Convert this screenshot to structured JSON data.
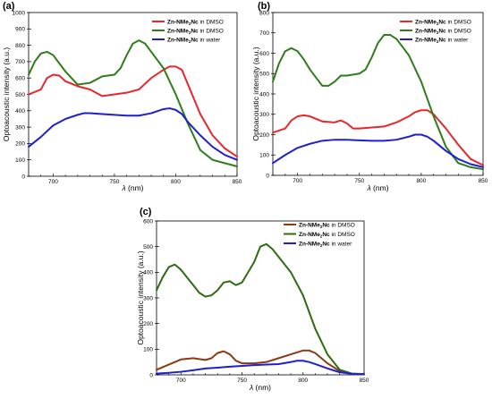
{
  "chart_data": [
    {
      "type": "line",
      "panel_label": "(a)",
      "ylabel": "Optoacoustic intensity (a.u.)",
      "xlabel_symbol": "λ",
      "xlabel_unit": "(nm)",
      "xlim": [
        680,
        850
      ],
      "ylim": [
        0,
        1000
      ],
      "x_ticks": [
        700,
        750,
        800,
        850
      ],
      "y_ticks": [
        0,
        100,
        200,
        300,
        400,
        500,
        600,
        700,
        800,
        900,
        1000
      ],
      "legend_position": "top-right",
      "series": [
        {
          "name": "Zn-NMe2Nc in DMSO",
          "name_main": "Zn-NMe",
          "name_sub": "2",
          "name_rest": "Nc",
          "name_suffix": " in DMSO",
          "color": "#e8262b",
          "x": [
            680,
            690,
            695,
            700,
            705,
            710,
            720,
            730,
            740,
            750,
            760,
            770,
            780,
            790,
            795,
            800,
            805,
            810,
            820,
            830,
            840,
            850
          ],
          "y": [
            500,
            530,
            600,
            620,
            615,
            580,
            550,
            530,
            490,
            500,
            510,
            530,
            600,
            650,
            670,
            670,
            650,
            560,
            380,
            250,
            170,
            120
          ]
        },
        {
          "name": "Zn-NMe2Nc in DMSO",
          "name_main": "Zn-NMe",
          "name_sub": "2",
          "name_rest": "Nc",
          "name_suffix": " in DMSO",
          "color": "#2e7d1a",
          "x": [
            680,
            685,
            690,
            695,
            700,
            705,
            710,
            720,
            730,
            740,
            750,
            755,
            760,
            765,
            770,
            775,
            780,
            790,
            800,
            810,
            820,
            830,
            840,
            850
          ],
          "y": [
            620,
            700,
            750,
            760,
            740,
            690,
            640,
            560,
            570,
            610,
            620,
            660,
            740,
            810,
            830,
            810,
            760,
            660,
            500,
            320,
            160,
            100,
            80,
            60
          ]
        },
        {
          "name": "Zn-NMe2Nc in water",
          "name_main": "Zn-NMe",
          "name_sub": "2",
          "name_rest": "Nc",
          "name_suffix": " in water",
          "color": "#1f1fcf",
          "x": [
            680,
            690,
            700,
            710,
            720,
            725,
            730,
            740,
            750,
            760,
            770,
            780,
            790,
            795,
            800,
            805,
            810,
            820,
            830,
            840,
            850
          ],
          "y": [
            180,
            240,
            310,
            350,
            375,
            385,
            385,
            380,
            375,
            370,
            370,
            385,
            410,
            415,
            405,
            380,
            330,
            250,
            180,
            130,
            100
          ]
        }
      ]
    },
    {
      "type": "line",
      "panel_label": "(b)",
      "ylabel": "Optoacoustic intensity (a.u.)",
      "xlabel_symbol": "λ",
      "xlabel_unit": "(nm)",
      "xlim": [
        680,
        850
      ],
      "ylim": [
        0,
        800
      ],
      "x_ticks": [
        700,
        750,
        800,
        850
      ],
      "y_ticks": [
        0,
        100,
        200,
        300,
        400,
        500,
        600,
        700,
        800
      ],
      "legend_position": "top-right",
      "series": [
        {
          "name": "Zn-NMe2Nc in DMSO",
          "name_main": "Zn-NMe",
          "name_sub": "2",
          "name_rest": "Nc",
          "name_suffix": " in DMSO",
          "color": "#e8262b",
          "x": [
            680,
            690,
            695,
            700,
            705,
            710,
            720,
            730,
            735,
            740,
            745,
            750,
            760,
            770,
            780,
            790,
            795,
            800,
            805,
            810,
            820,
            830,
            840,
            850
          ],
          "y": [
            210,
            230,
            270,
            290,
            295,
            290,
            265,
            260,
            270,
            255,
            230,
            230,
            235,
            240,
            260,
            290,
            310,
            320,
            320,
            300,
            230,
            150,
            80,
            50
          ]
        },
        {
          "name": "Zn-NMe2Nc in DMSO",
          "name_main": "Zn-NMe",
          "name_sub": "2",
          "name_rest": "Nc",
          "name_suffix": " in DMSO",
          "color": "#2e7d1a",
          "x": [
            680,
            685,
            690,
            695,
            700,
            705,
            710,
            715,
            720,
            725,
            730,
            735,
            740,
            750,
            755,
            760,
            765,
            770,
            775,
            780,
            790,
            800,
            810,
            820,
            830,
            840,
            850
          ],
          "y": [
            460,
            550,
            610,
            625,
            610,
            570,
            520,
            480,
            440,
            440,
            460,
            490,
            490,
            500,
            520,
            580,
            650,
            690,
            690,
            670,
            590,
            460,
            290,
            140,
            60,
            40,
            30
          ]
        },
        {
          "name": "Zn-NMe2Nc in water",
          "name_main": "Zn-NMe",
          "name_sub": "2",
          "name_rest": "Nc",
          "name_suffix": " in water",
          "color": "#1f1fcf",
          "x": [
            680,
            690,
            700,
            710,
            720,
            730,
            740,
            750,
            760,
            770,
            780,
            790,
            795,
            800,
            805,
            810,
            820,
            830,
            840,
            850
          ],
          "y": [
            60,
            100,
            135,
            155,
            170,
            175,
            175,
            172,
            170,
            170,
            175,
            190,
            200,
            200,
            190,
            170,
            120,
            80,
            55,
            40
          ]
        }
      ]
    },
    {
      "type": "line",
      "panel_label": "(c)",
      "ylabel": "Optoacoustic intensity (a.u.)",
      "xlabel_symbol": "λ",
      "xlabel_unit": "(nm)",
      "xlim": [
        680,
        850
      ],
      "ylim": [
        0,
        600
      ],
      "x_ticks": [
        700,
        750,
        800,
        850
      ],
      "y_ticks": [
        0,
        100,
        200,
        300,
        400,
        500,
        600
      ],
      "legend_position": "top-right",
      "series": [
        {
          "name": "Zn-NMe2Nc in DMSO",
          "name_main": "Zn-NMe",
          "name_sub": "2",
          "name_rest": "Nc",
          "name_suffix": " in DMSO",
          "color": "#8b3a12",
          "x": [
            680,
            690,
            700,
            710,
            720,
            725,
            730,
            735,
            740,
            745,
            750,
            760,
            770,
            780,
            790,
            800,
            805,
            810,
            820,
            830,
            840,
            850
          ],
          "y": [
            20,
            40,
            60,
            65,
            58,
            65,
            85,
            92,
            80,
            55,
            45,
            45,
            50,
            65,
            80,
            95,
            95,
            85,
            45,
            15,
            5,
            3
          ]
        },
        {
          "name": "Zn-NMe2Nc in DMSO",
          "name_main": "Zn-NMe",
          "name_sub": "2",
          "name_rest": "Nc",
          "name_suffix": " in DMSO",
          "color": "#2e6b12",
          "x": [
            680,
            685,
            690,
            695,
            700,
            705,
            710,
            715,
            720,
            725,
            730,
            735,
            740,
            745,
            750,
            755,
            760,
            765,
            770,
            775,
            780,
            790,
            800,
            810,
            820,
            830,
            840,
            850
          ],
          "y": [
            330,
            380,
            420,
            430,
            410,
            380,
            350,
            320,
            305,
            310,
            330,
            360,
            365,
            350,
            360,
            400,
            440,
            500,
            510,
            490,
            460,
            400,
            310,
            180,
            80,
            20,
            5,
            2
          ]
        },
        {
          "name": "Zn-NMe2Nc in water",
          "name_main": "Zn-NMe",
          "name_sub": "2",
          "name_rest": "Nc",
          "name_suffix": " in water",
          "color": "#1f1fcf",
          "x": [
            680,
            690,
            700,
            710,
            720,
            730,
            740,
            750,
            760,
            770,
            780,
            790,
            795,
            800,
            805,
            810,
            820,
            830,
            840,
            850
          ],
          "y": [
            5,
            8,
            12,
            18,
            25,
            28,
            32,
            35,
            38,
            40,
            42,
            50,
            55,
            55,
            50,
            42,
            25,
            10,
            4,
            2
          ]
        }
      ]
    }
  ]
}
